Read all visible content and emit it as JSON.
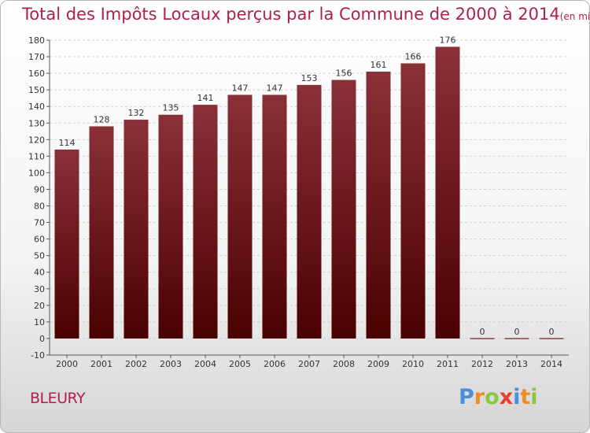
{
  "title": "Total des Impôts Locaux perçus par la Commune de 2000 à 2014",
  "unit": "(en milliers d'€)",
  "commune": "BLEURY",
  "logo": {
    "text": "Proxiti",
    "letters": [
      {
        "ch": "P",
        "color": "#4a90d9"
      },
      {
        "ch": "r",
        "color": "#f08a24"
      },
      {
        "ch": "o",
        "color": "#8cc63f"
      },
      {
        "ch": "x",
        "color": "#e8402a"
      },
      {
        "ch": "i",
        "color": "#4a90d9"
      },
      {
        "ch": "t",
        "color": "#f08a24"
      },
      {
        "ch": "i",
        "color": "#8cc63f"
      }
    ]
  },
  "colors": {
    "bar_top": "#8a3038",
    "bar_bottom": "#4a0000",
    "title": "#b0204a",
    "grid": "#d0d0d0"
  },
  "chart_data": {
    "type": "bar",
    "categories": [
      "2000",
      "2001",
      "2002",
      "2003",
      "2004",
      "2005",
      "2006",
      "2007",
      "2008",
      "2009",
      "2010",
      "2011",
      "2012",
      "2013",
      "2014"
    ],
    "values": [
      114,
      128,
      132,
      135,
      141,
      147,
      147,
      153,
      156,
      161,
      166,
      176,
      0,
      0,
      0
    ],
    "ylim": [
      -10,
      180
    ],
    "yticks": [
      -10,
      0,
      10,
      20,
      30,
      40,
      50,
      60,
      70,
      80,
      90,
      100,
      110,
      120,
      130,
      140,
      150,
      160,
      170,
      180
    ],
    "grid": true,
    "data_labels": true
  }
}
